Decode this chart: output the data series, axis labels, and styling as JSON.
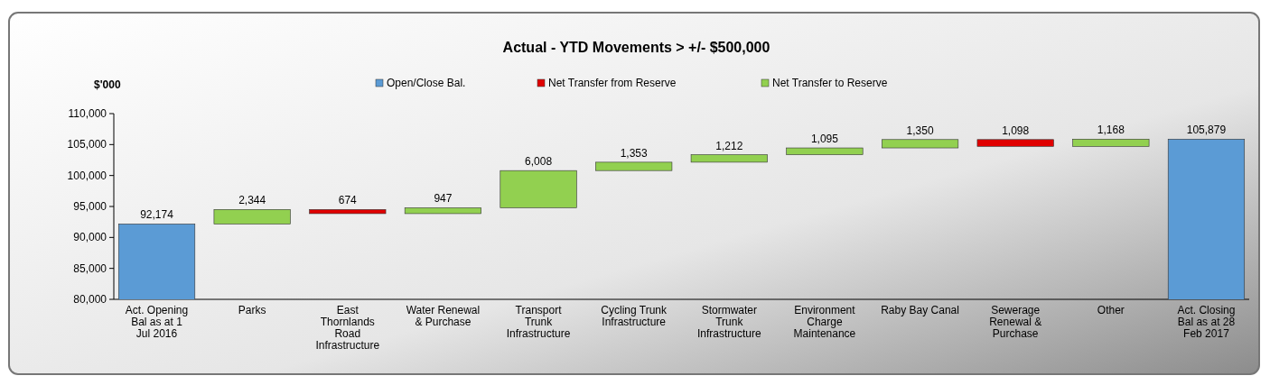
{
  "chart_data": {
    "type": "bar",
    "title": "Actual  -  YTD Movements > +/- $500,000",
    "ylabel": "$'000",
    "categories": [
      "Act. Opening Bal as at 1 Jul 2016",
      "Parks",
      "East Thornlands Road Infrastructure",
      "Water Renewal & Purchase",
      "Transport Trunk Infrastructure",
      "Cycling Trunk Infrastructure",
      "Stormwater Trunk Infrastructure",
      "Environment Charge Maintenance",
      "Raby Bay Canal",
      "Sewerage Renewal & Purchase",
      "Other",
      "Act. Closing Bal as at 28 Feb 2017"
    ],
    "series": [
      {
        "name": "Open/Close Bal.",
        "color": "#5b9bd5",
        "values": [
          92174,
          null,
          null,
          null,
          null,
          null,
          null,
          null,
          null,
          null,
          null,
          105879
        ],
        "value_labels": [
          "92,174",
          null,
          null,
          null,
          null,
          null,
          null,
          null,
          null,
          null,
          null,
          "105,879"
        ],
        "base": [
          0,
          null,
          null,
          null,
          null,
          null,
          null,
          null,
          null,
          null,
          null,
          0
        ]
      },
      {
        "name": "Net Transfer from Reserve",
        "color": "#e00000",
        "values": [
          null,
          null,
          674,
          null,
          null,
          null,
          null,
          null,
          null,
          1098,
          null,
          null
        ],
        "value_labels": [
          null,
          null,
          "674",
          null,
          null,
          null,
          null,
          null,
          null,
          "1,098",
          null,
          null
        ],
        "base": [
          null,
          null,
          93844,
          null,
          null,
          null,
          null,
          null,
          null,
          104711,
          null,
          null
        ]
      },
      {
        "name": "Net Transfer to Reserve",
        "color": "#92d050",
        "values": [
          null,
          2344,
          null,
          947,
          6008,
          1353,
          1212,
          1095,
          1350,
          null,
          1168,
          null
        ],
        "value_labels": [
          null,
          "2,344",
          null,
          "947",
          "6,008",
          "1,353",
          "1,212",
          "1,095",
          "1,350",
          null,
          "1,168",
          null
        ],
        "base": [
          null,
          92174,
          null,
          93844,
          94791,
          100799,
          102152,
          103364,
          104459,
          null,
          104711,
          null
        ]
      }
    ],
    "stacked": true,
    "ylim": [
      80000,
      110000
    ],
    "yticks": [
      {
        "value": 80000,
        "label": "80,000"
      },
      {
        "value": 85000,
        "label": "85,000"
      },
      {
        "value": 90000,
        "label": "90,000"
      },
      {
        "value": 95000,
        "label": "95,000"
      },
      {
        "value": 100000,
        "label": "100,000"
      },
      {
        "value": 105000,
        "label": "105,000"
      },
      {
        "value": 110000,
        "label": "110,000"
      }
    ],
    "legend": "top"
  }
}
